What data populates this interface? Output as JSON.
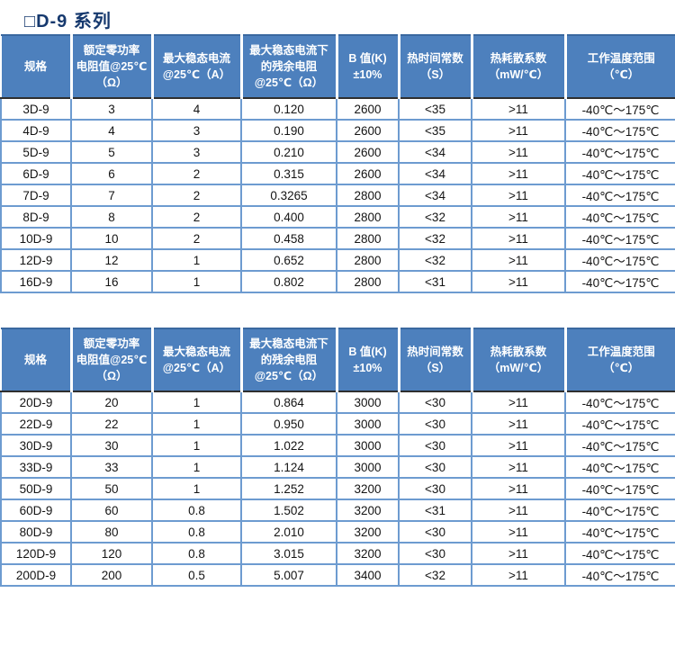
{
  "page": {
    "title": "□D-9  系列"
  },
  "colors": {
    "header_bg": "#4d80bd",
    "header_top_border": "#3a689f",
    "header_bottom_line": "#2f2f2f",
    "grid_blue": "#6d9bd0",
    "title_color": "#16396e"
  },
  "tables": [
    {
      "name": "D-9 系列参数表（3D-9 ~ 16D-9）",
      "columns": [
        {
          "label": "规格"
        },
        {
          "label": "额定零功率\n电阻值@25℃\n（Ω）"
        },
        {
          "label": "最大稳态电流\n@25℃（A）"
        },
        {
          "label": "最大稳态电流下\n的残余电阻\n@25℃（Ω）"
        },
        {
          "label": "B 值(K)\n±10%"
        },
        {
          "label": "热时间常数\n（S）"
        },
        {
          "label": "热耗散系数\n（mW/℃）"
        },
        {
          "label": "工作温度范围\n（℃）"
        }
      ],
      "rows": [
        {
          "cells": [
            "3D-9",
            "3",
            "4",
            "0.120",
            "2600",
            "<35",
            ">11",
            "-40℃～175℃"
          ]
        },
        {
          "cells": [
            "4D-9",
            "4",
            "3",
            "0.190",
            "2600",
            "<35",
            ">11",
            "-40℃～175℃"
          ]
        },
        {
          "cells": [
            "5D-9",
            "5",
            "3",
            "0.210",
            "2600",
            "<34",
            ">11",
            "-40℃～175℃"
          ]
        },
        {
          "cells": [
            "6D-9",
            "6",
            "2",
            "0.315",
            "2600",
            "<34",
            ">11",
            "-40℃～175℃"
          ]
        },
        {
          "cells": [
            "7D-9",
            "7",
            "2",
            "0.3265",
            "2800",
            "<34",
            ">11",
            "-40℃～175℃"
          ]
        },
        {
          "cells": [
            "8D-9",
            "8",
            "2",
            "0.400",
            "2800",
            "<32",
            ">11",
            "-40℃～175℃"
          ]
        },
        {
          "cells": [
            "10D-9",
            "10",
            "2",
            "0.458",
            "2800",
            "<32",
            ">11",
            "-40℃～175℃"
          ]
        },
        {
          "cells": [
            "12D-9",
            "12",
            "1",
            "0.652",
            "2800",
            "<32",
            ">11",
            "-40℃～175℃"
          ]
        },
        {
          "cells": [
            "16D-9",
            "16",
            "1",
            "0.802",
            "2800",
            "<31",
            ">11",
            "-40℃～175℃"
          ]
        }
      ]
    },
    {
      "name": "D-9 系列参数表（20D-9 ~ 200D-9）",
      "columns": [
        {
          "label": "规格"
        },
        {
          "label": "额定零功率\n电阻值@25℃\n（Ω）"
        },
        {
          "label": "最大稳态电流\n@25℃（A）"
        },
        {
          "label": "最大稳态电流下\n的残余电阻\n@25℃（Ω）"
        },
        {
          "label": "B 值(K)\n±10%"
        },
        {
          "label": "热时间常数\n（S）"
        },
        {
          "label": "热耗散系数\n（mW/℃）"
        },
        {
          "label": "工作温度范围\n（℃）"
        }
      ],
      "rows": [
        {
          "cells": [
            "20D-9",
            "20",
            "1",
            "0.864",
            "3000",
            "<30",
            ">11",
            "-40℃～175℃"
          ]
        },
        {
          "cells": [
            "22D-9",
            "22",
            "1",
            "0.950",
            "3000",
            "<30",
            ">11",
            "-40℃～175℃"
          ]
        },
        {
          "cells": [
            "30D-9",
            "30",
            "1",
            "1.022",
            "3000",
            "<30",
            ">11",
            "-40℃～175℃"
          ]
        },
        {
          "cells": [
            "33D-9",
            "33",
            "1",
            "1.124",
            "3000",
            "<30",
            ">11",
            "-40℃～175℃"
          ]
        },
        {
          "cells": [
            "50D-9",
            "50",
            "1",
            "1.252",
            "3200",
            "<30",
            ">11",
            "-40℃～175℃"
          ]
        },
        {
          "cells": [
            "60D-9",
            "60",
            "0.8",
            "1.502",
            "3200",
            "<31",
            ">11",
            "-40℃～175℃"
          ]
        },
        {
          "cells": [
            "80D-9",
            "80",
            "0.8",
            "2.010",
            "3200",
            "<30",
            ">11",
            "-40℃～175℃"
          ]
        },
        {
          "cells": [
            "120D-9",
            "120",
            "0.8",
            "3.015",
            "3200",
            "<30",
            ">11",
            "-40℃～175℃"
          ]
        },
        {
          "cells": [
            "200D-9",
            "200",
            "0.5",
            "5.007",
            "3400",
            "<32",
            ">11",
            "-40℃～175℃"
          ]
        }
      ]
    }
  ]
}
